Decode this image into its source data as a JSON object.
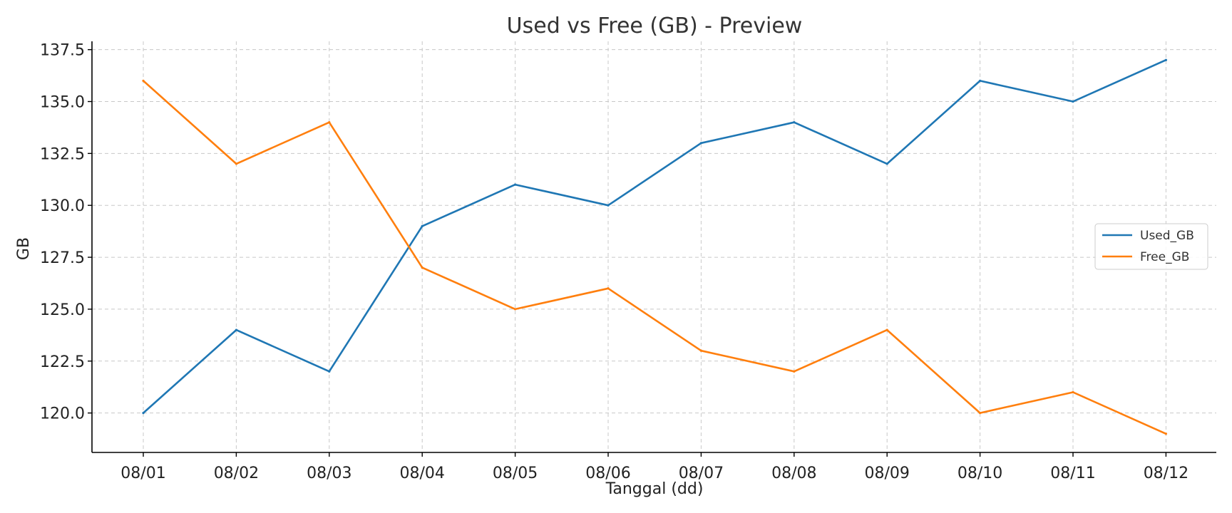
{
  "chart_data": {
    "type": "line",
    "title": "Used vs Free (GB) - Preview",
    "xlabel": "Tanggal (dd)",
    "ylabel": "GB",
    "categories": [
      "08/01",
      "08/02",
      "08/03",
      "08/04",
      "08/05",
      "08/06",
      "08/07",
      "08/08",
      "08/09",
      "08/10",
      "08/11",
      "08/12"
    ],
    "series": [
      {
        "name": "Used_GB",
        "color": "#1f77b4",
        "values": [
          120,
          124,
          122,
          129,
          131,
          130,
          133,
          134,
          132,
          136,
          135,
          137
        ]
      },
      {
        "name": "Free_GB",
        "color": "#ff7f0e",
        "values": [
          136,
          132,
          134,
          127,
          125,
          126,
          123,
          122,
          124,
          120,
          121,
          119
        ]
      }
    ],
    "ylim": [
      118.1,
      137.9
    ],
    "yticks": [
      120.0,
      122.5,
      125.0,
      127.5,
      130.0,
      132.5,
      135.0,
      137.5
    ],
    "ytick_labels": [
      "120.0",
      "122.5",
      "125.0",
      "127.5",
      "130.0",
      "132.5",
      "135.0",
      "137.5"
    ],
    "grid": true,
    "legend_position": "center-right"
  }
}
